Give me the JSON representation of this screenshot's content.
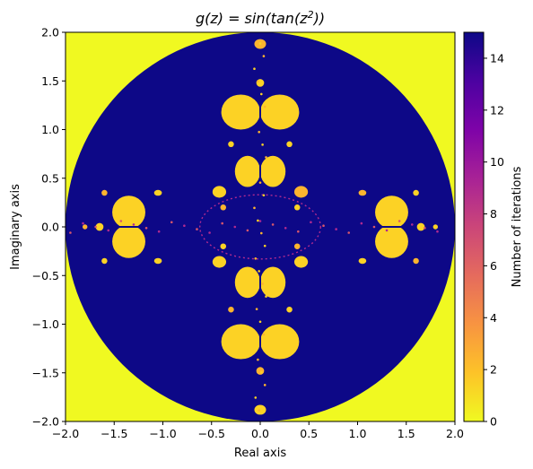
{
  "chart_data": {
    "type": "heatmap",
    "title_main": "g(z) = sin(tan(z",
    "title_sup": "2",
    "title_end": "))",
    "xlabel": "Real axis",
    "ylabel": "Imaginary axis",
    "xlim": [
      -2.0,
      2.0
    ],
    "ylim": [
      -2.0,
      2.0
    ],
    "xticks": [
      "−2.0",
      "−1.5",
      "−1.0",
      "−0.5",
      "0.0",
      "0.5",
      "1.0",
      "1.5",
      "2.0"
    ],
    "yticks": [
      "−2.0",
      "−1.5",
      "−1.0",
      "−0.5",
      "0.0",
      "0.5",
      "1.0",
      "1.5",
      "2.0"
    ],
    "colorbar": {
      "label": "Number of iterations",
      "range": [
        0,
        15
      ],
      "ticks": [
        "0",
        "2",
        "4",
        "6",
        "8",
        "10",
        "12",
        "14"
      ],
      "colormap": "plasma"
    },
    "escape_radius_circle": 2.0,
    "colors": {
      "outside": "#f0f921",
      "max_iter": "#0d0887"
    }
  }
}
